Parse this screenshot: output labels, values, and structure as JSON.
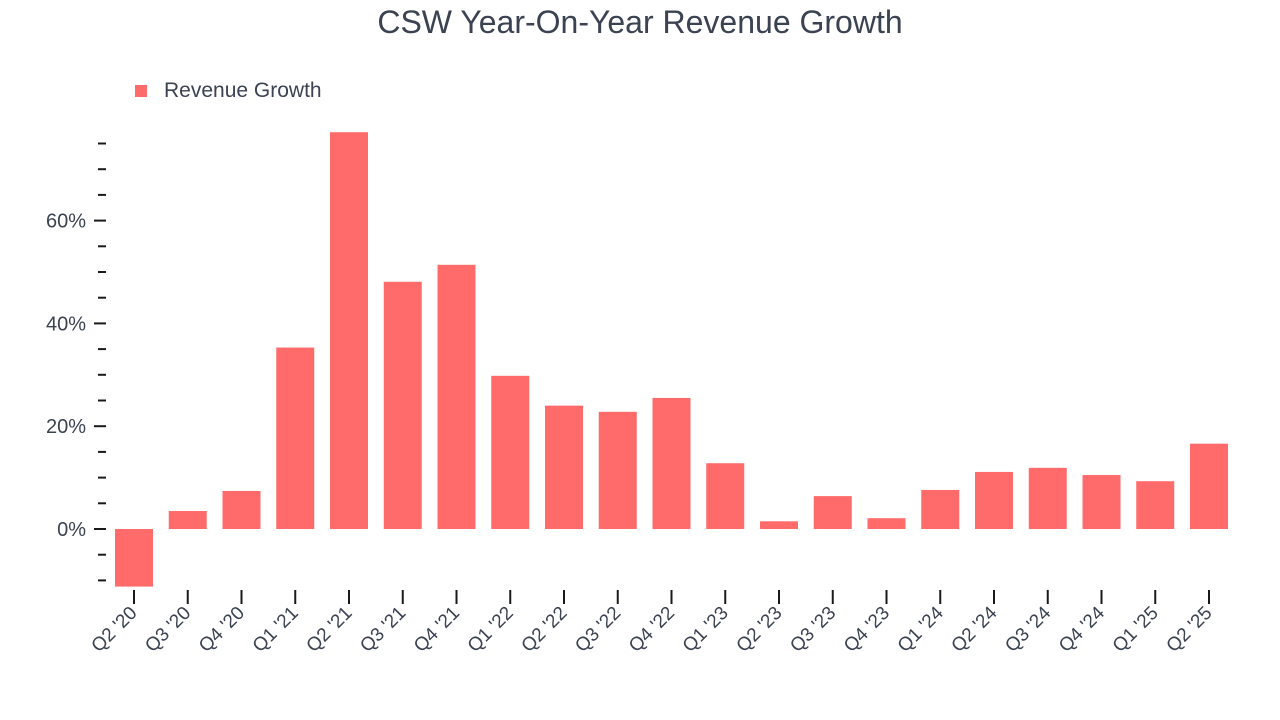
{
  "chart_data": {
    "type": "bar",
    "title": "CSW Year-On-Year Revenue Growth",
    "xlabel": "",
    "ylabel": "",
    "legend": {
      "position": "top-left",
      "entries": [
        "Revenue Growth"
      ]
    },
    "categories": [
      "Q2 '20",
      "Q3 '20",
      "Q4 '20",
      "Q1 '21",
      "Q2 '21",
      "Q3 '21",
      "Q4 '21",
      "Q1 '22",
      "Q2 '22",
      "Q3 '22",
      "Q4 '22",
      "Q1 '23",
      "Q2 '23",
      "Q3 '23",
      "Q4 '23",
      "Q1 '24",
      "Q2 '24",
      "Q3 '24",
      "Q4 '24",
      "Q1 '25",
      "Q2 '25"
    ],
    "series": [
      {
        "name": "Revenue Growth",
        "values": [
          -11.2,
          3.5,
          7.4,
          35.3,
          77.2,
          48.1,
          51.4,
          29.8,
          24.0,
          22.8,
          25.5,
          12.8,
          1.5,
          6.4,
          2.1,
          7.6,
          11.1,
          11.9,
          10.5,
          9.3,
          16.6
        ]
      }
    ],
    "ylim": [
      -11,
      77
    ],
    "yticks": [
      0,
      20,
      40,
      60
    ],
    "ytick_labels": [
      "0%",
      "20%",
      "40%",
      "60%"
    ],
    "minor_ytick_step": 5,
    "grid": false,
    "colors": {
      "bar": "#ff6b6b",
      "text": "#3b4252",
      "axis": "#1a1a1a"
    }
  }
}
